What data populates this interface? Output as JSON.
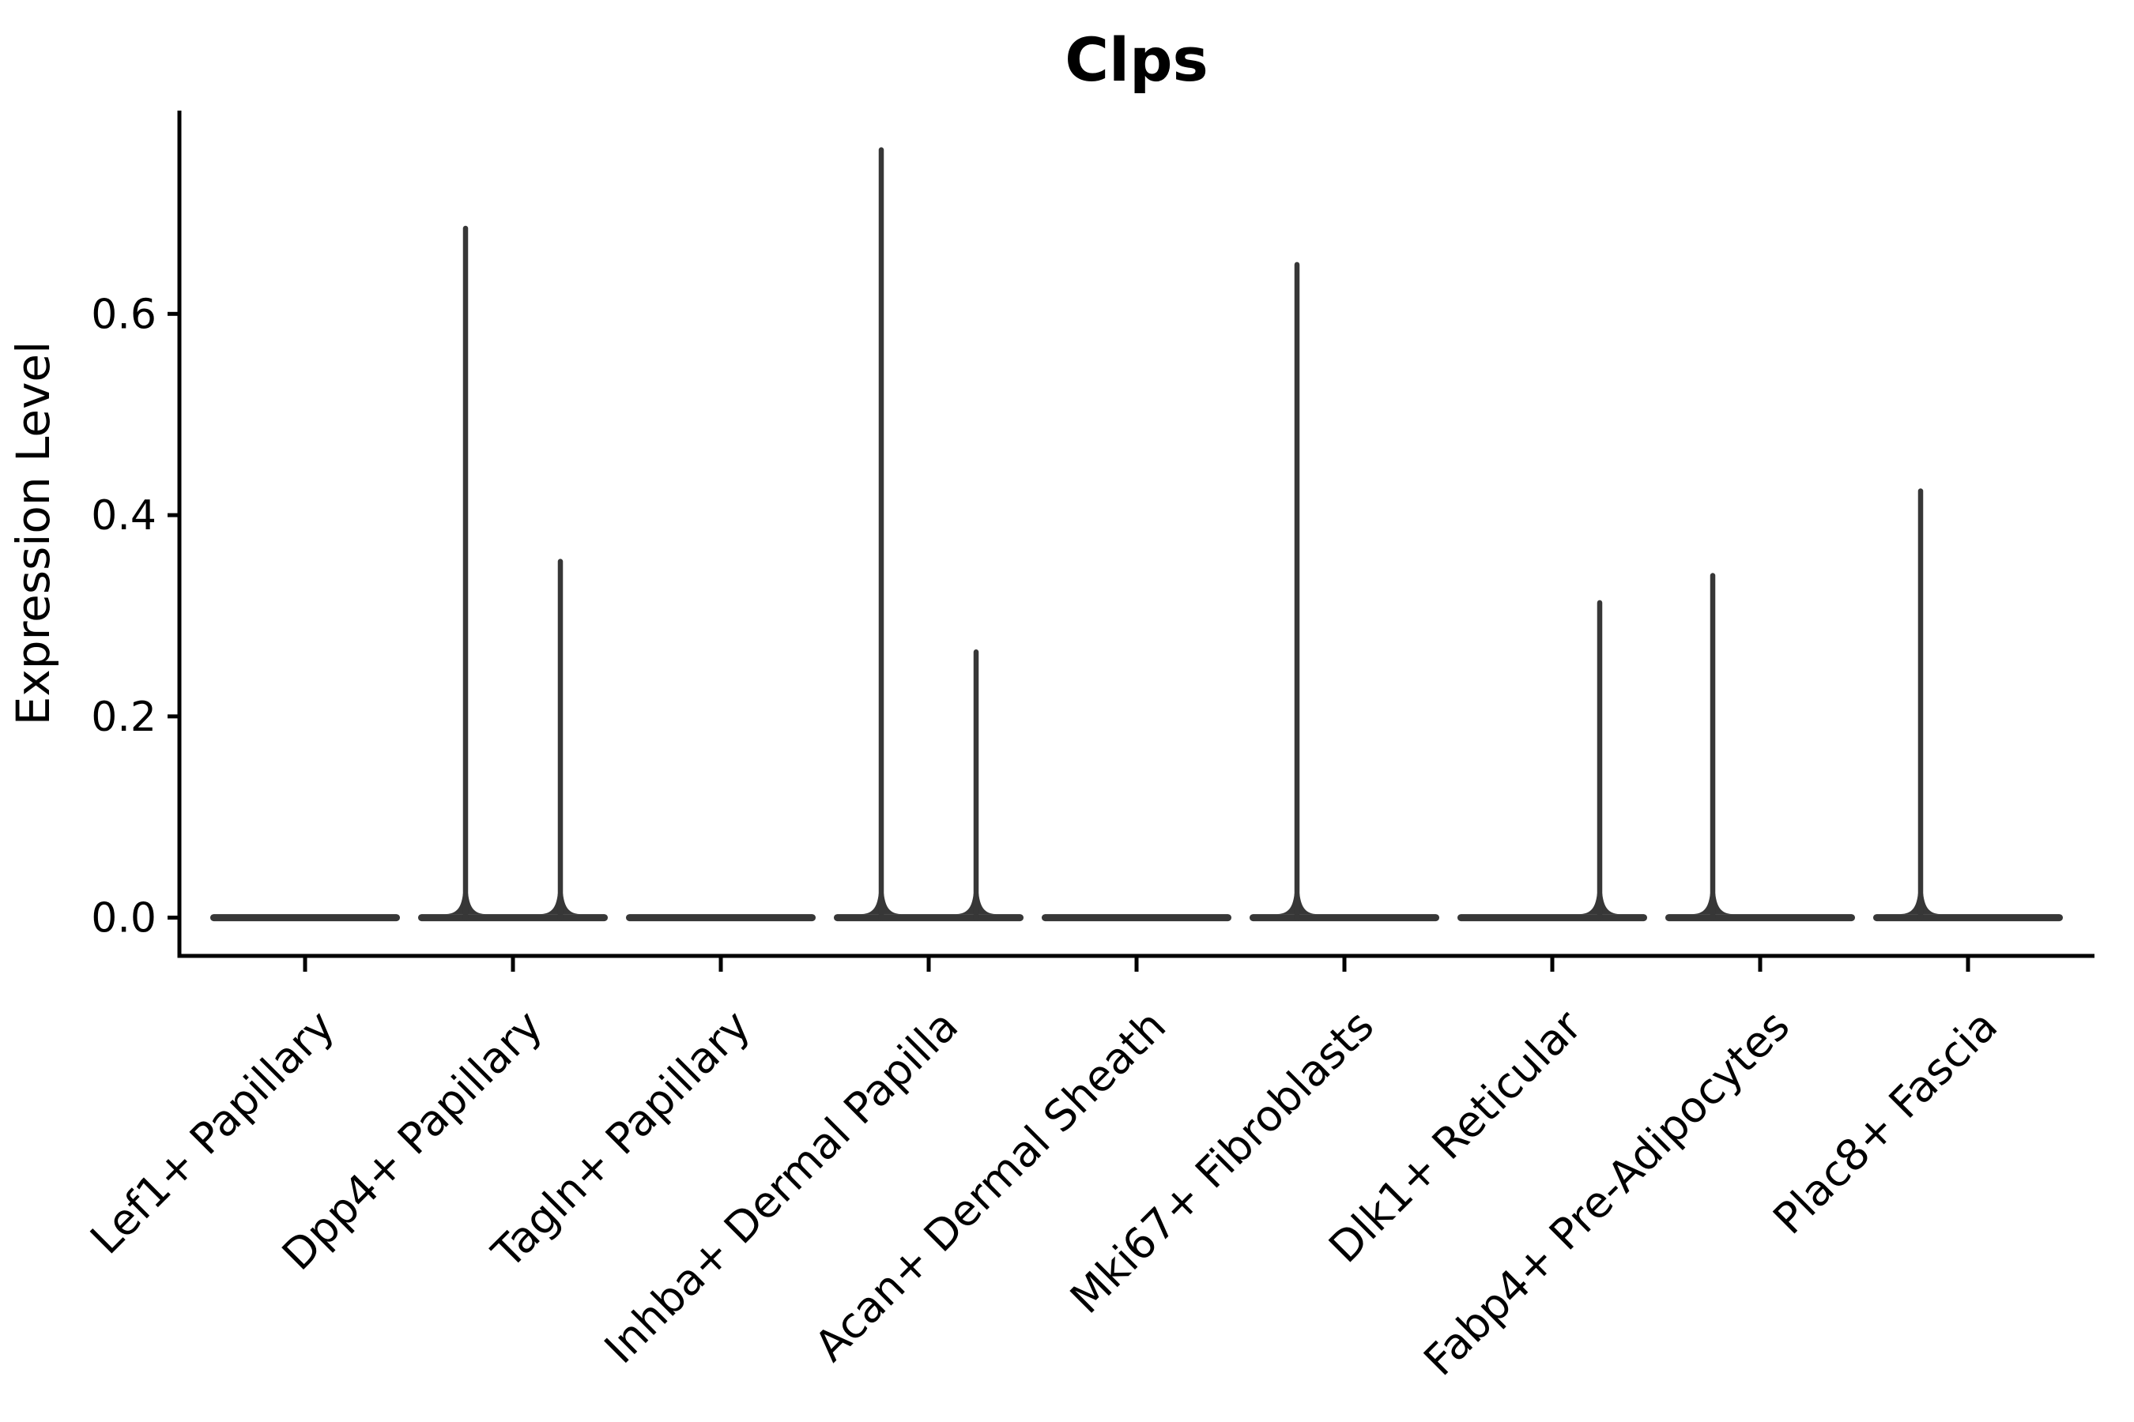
{
  "chart_data": {
    "type": "violin",
    "title": "Clps",
    "xlabel": "",
    "ylabel": "Expression Level",
    "categories": [
      "Lef1+ Papillary",
      "Dpp4+ Papillary",
      "Tagln+ Papillary",
      "Inhba+ Dermal Papilla",
      "Acan+ Dermal Sheath",
      "Mki67+ Fibroblasts",
      "Dlk1+ Reticular",
      "Fabp4+ Pre-Adipocytes",
      "Plac8+ Fascia"
    ],
    "ytick_labels": [
      "0.0",
      "0.2",
      "0.4",
      "0.6"
    ],
    "ytick_values": [
      0.0,
      0.2,
      0.4,
      0.6
    ],
    "ylim": [
      -0.038,
      0.802
    ],
    "baseline_value": 0.0,
    "series": [
      {
        "name": "left-half-violin",
        "max_expression": [
          0,
          0.685,
          0,
          0.763,
          0,
          0.649,
          0,
          0.34,
          0.424
        ]
      },
      {
        "name": "right-half-violin",
        "max_expression": [
          0,
          0.354,
          0,
          0.264,
          0,
          0,
          0.313,
          0,
          0
        ]
      }
    ],
    "legend": "none",
    "grid": false,
    "colors": {
      "violin": "#373737",
      "axis": "#000000",
      "text": "#000000",
      "background": "#ffffff"
    }
  }
}
